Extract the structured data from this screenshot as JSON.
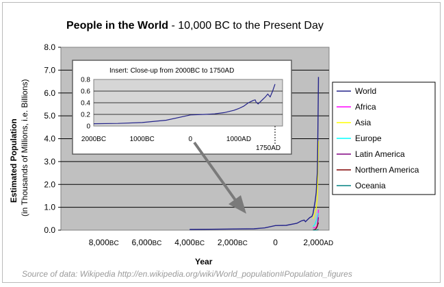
{
  "chart_data": {
    "type": "line",
    "title_bold": "People in the World",
    "title_rest": " - 10,000 BC to the Present Day",
    "xlabel": "Year",
    "ylabel": "Estimated Population",
    "ylabel_sub": "(in Thousands of Millions, i.e. Billions)",
    "ylim": [
      0,
      8
    ],
    "xlim": [
      -10000,
      2500
    ],
    "y_ticks": [
      "0.0",
      "1.0",
      "2.0",
      "3.0",
      "4.0",
      "5.0",
      "6.0",
      "7.0",
      "8.0"
    ],
    "x_ticks": [
      {
        "value": -8000,
        "num": "8,000",
        "era": "BC"
      },
      {
        "value": -6000,
        "num": "6,000",
        "era": "BC"
      },
      {
        "value": -4000,
        "num": "4,000",
        "era": "BC"
      },
      {
        "value": -2000,
        "num": "2,000",
        "era": "BC"
      },
      {
        "value": 0,
        "num": "0",
        "era": ""
      },
      {
        "value": 2000,
        "num": "2,000",
        "era": "AD"
      }
    ],
    "legend_position": "right",
    "series": [
      {
        "name": "World",
        "color": "#22228a",
        "x": [
          -4000,
          -3000,
          -2000,
          -1000,
          -500,
          0,
          500,
          1000,
          1200,
          1340,
          1400,
          1500,
          1600,
          1700,
          1750,
          1800,
          1850,
          1900,
          1950,
          1960,
          1970,
          1980,
          1990,
          2000,
          2005
        ],
        "y": [
          0.03,
          0.04,
          0.05,
          0.06,
          0.1,
          0.2,
          0.21,
          0.3,
          0.4,
          0.44,
          0.37,
          0.46,
          0.55,
          0.6,
          0.72,
          0.98,
          1.26,
          1.65,
          2.52,
          3.02,
          3.7,
          4.44,
          5.27,
          6.07,
          6.7
        ]
      },
      {
        "name": "Africa",
        "color": "#ff00ff",
        "x": [
          1750,
          1800,
          1850,
          1900,
          1950,
          1975,
          2000,
          2005
        ],
        "y": [
          0.1,
          0.11,
          0.11,
          0.13,
          0.22,
          0.41,
          0.8,
          0.9
        ]
      },
      {
        "name": "Asia",
        "color": "#ffff00",
        "x": [
          1750,
          1800,
          1850,
          1900,
          1950,
          1975,
          2000,
          2005
        ],
        "y": [
          0.5,
          0.63,
          0.81,
          0.95,
          1.4,
          2.4,
          3.7,
          3.9
        ]
      },
      {
        "name": "Europe",
        "color": "#00ffff",
        "x": [
          1750,
          1800,
          1850,
          1900,
          1950,
          1975,
          2000,
          2005
        ],
        "y": [
          0.16,
          0.2,
          0.28,
          0.41,
          0.55,
          0.68,
          0.73,
          0.73
        ]
      },
      {
        "name": "Latin America",
        "color": "#800080",
        "x": [
          1750,
          1800,
          1850,
          1900,
          1950,
          1975,
          2000,
          2005
        ],
        "y": [
          0.02,
          0.02,
          0.04,
          0.07,
          0.17,
          0.32,
          0.52,
          0.56
        ]
      },
      {
        "name": "Northern America",
        "color": "#800000",
        "x": [
          1750,
          1800,
          1850,
          1900,
          1950,
          1975,
          2000,
          2005
        ],
        "y": [
          0.002,
          0.007,
          0.026,
          0.082,
          0.17,
          0.24,
          0.31,
          0.33
        ]
      },
      {
        "name": "Oceania",
        "color": "#008080",
        "x": [
          1750,
          1800,
          1850,
          1900,
          1950,
          1975,
          2000,
          2005
        ],
        "y": [
          0.002,
          0.002,
          0.002,
          0.006,
          0.013,
          0.021,
          0.031,
          0.033
        ]
      }
    ],
    "inset": {
      "title": "Insert:  Close-up from 2000BC to 1750AD",
      "ylim": [
        0,
        0.8
      ],
      "xlim": [
        -2000,
        1750
      ],
      "y_ticks": [
        "0",
        "0.2",
        "0.4",
        "0.6",
        "0.8"
      ],
      "x_ticks": [
        {
          "value": -2000,
          "label": "2000BC"
        },
        {
          "value": -1000,
          "label": "1000BC"
        },
        {
          "value": 0,
          "label": "0"
        },
        {
          "value": 1000,
          "label": "1000AD"
        }
      ],
      "end_label": "1750AD",
      "x": [
        -2000,
        -1500,
        -1000,
        -500,
        0,
        300,
        500,
        700,
        900,
        1000,
        1100,
        1200,
        1250,
        1300,
        1340,
        1360,
        1400,
        1450,
        1500,
        1550,
        1600,
        1650,
        1700,
        1750
      ],
      "y": [
        0.04,
        0.045,
        0.06,
        0.1,
        0.19,
        0.2,
        0.21,
        0.23,
        0.27,
        0.3,
        0.34,
        0.4,
        0.42,
        0.44,
        0.45,
        0.41,
        0.38,
        0.42,
        0.46,
        0.5,
        0.55,
        0.5,
        0.6,
        0.72
      ]
    },
    "source": "Source of data: Wikipedia  http://en.wikipedia.org/wiki/World_population#Population_figures"
  }
}
